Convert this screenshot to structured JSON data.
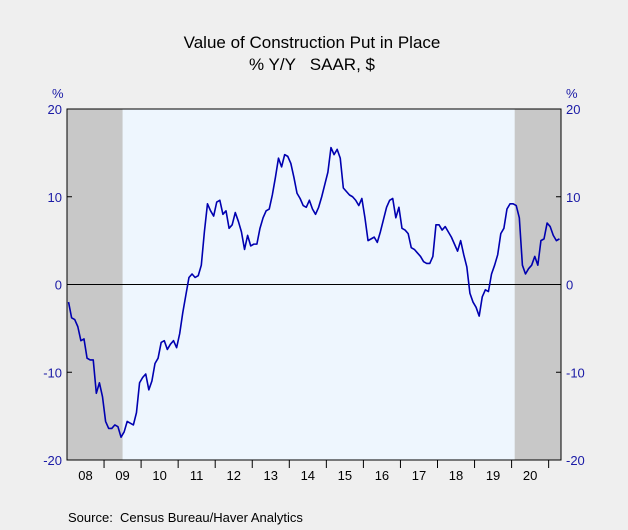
{
  "chart_data": {
    "type": "line",
    "title": "Value of Construction Put in Place",
    "subtitle": "% Y/Y   SAAR, $",
    "y_unit_left": "%",
    "y_unit_right": "%",
    "ylim": [
      -20,
      20
    ],
    "yticks": [
      -20,
      -10,
      0,
      10,
      20
    ],
    "ytick_labels": [
      "-20",
      "-10",
      "0",
      "10",
      "20"
    ],
    "x_range": [
      "2008-01",
      "2021-04"
    ],
    "xtick_labels": [
      "08",
      "09",
      "10",
      "11",
      "12",
      "13",
      "14",
      "15",
      "16",
      "17",
      "18",
      "19",
      "20"
    ],
    "recession_shading": [
      {
        "start": "2008-01",
        "end": "2009-06"
      },
      {
        "start": "2020-02",
        "end": "2021-04"
      }
    ],
    "source": "Source:  Census Bureau/Haver Analytics",
    "colors": {
      "line": "#0000b0",
      "axis_text": "#1a1aa6",
      "recession": "#c8c8c8",
      "plot_bg": "#eef6fe",
      "page_bg": "#efefef"
    },
    "series": [
      {
        "x": [
          "2008-01",
          "2008-02",
          "2008-03",
          "2008-04",
          "2008-05",
          "2008-06",
          "2008-07",
          "2008-08",
          "2008-09",
          "2008-10",
          "2008-11",
          "2008-12",
          "2009-01",
          "2009-02",
          "2009-03",
          "2009-04",
          "2009-05",
          "2009-06",
          "2009-07",
          "2009-08",
          "2009-09",
          "2009-10",
          "2009-11",
          "2009-12",
          "2010-01",
          "2010-02",
          "2010-03",
          "2010-04",
          "2010-05",
          "2010-06",
          "2010-07",
          "2010-08",
          "2010-09",
          "2010-10",
          "2010-11",
          "2010-12",
          "2011-01",
          "2011-02",
          "2011-03",
          "2011-04",
          "2011-05",
          "2011-06",
          "2011-07",
          "2011-08",
          "2011-09",
          "2011-10",
          "2011-11",
          "2011-12",
          "2012-01",
          "2012-02",
          "2012-03",
          "2012-04",
          "2012-05",
          "2012-06",
          "2012-07",
          "2012-08",
          "2012-09",
          "2012-10",
          "2012-11",
          "2012-12",
          "2013-01",
          "2013-02",
          "2013-03",
          "2013-04",
          "2013-05",
          "2013-06",
          "2013-07",
          "2013-08",
          "2013-09",
          "2013-10",
          "2013-11",
          "2013-12",
          "2014-01",
          "2014-02",
          "2014-03",
          "2014-04",
          "2014-05",
          "2014-06",
          "2014-07",
          "2014-08",
          "2014-09",
          "2014-10",
          "2014-11",
          "2014-12",
          "2015-01",
          "2015-02",
          "2015-03",
          "2015-04",
          "2015-05",
          "2015-06",
          "2015-07",
          "2015-08",
          "2015-09",
          "2015-10",
          "2015-11",
          "2015-12",
          "2016-01",
          "2016-02",
          "2016-03",
          "2016-04",
          "2016-05",
          "2016-06",
          "2016-07",
          "2016-08",
          "2016-09",
          "2016-10",
          "2016-11",
          "2016-12",
          "2017-01",
          "2017-02",
          "2017-03",
          "2017-04",
          "2017-05",
          "2017-06",
          "2017-07",
          "2017-08",
          "2017-09",
          "2017-10",
          "2017-11",
          "2017-12",
          "2018-01",
          "2018-02",
          "2018-03",
          "2018-04",
          "2018-05",
          "2018-06",
          "2018-07",
          "2018-08",
          "2018-09",
          "2018-10",
          "2018-11",
          "2018-12",
          "2019-01",
          "2019-02",
          "2019-03",
          "2019-04",
          "2019-05",
          "2019-06",
          "2019-07",
          "2019-08",
          "2019-09",
          "2019-10",
          "2019-11",
          "2019-12",
          "2020-01",
          "2020-02",
          "2020-03",
          "2020-04",
          "2020-05",
          "2020-06",
          "2020-07",
          "2020-08",
          "2020-09",
          "2020-10",
          "2020-11",
          "2020-12",
          "2021-01",
          "2021-02",
          "2021-03",
          "2021-04"
        ],
        "values": [
          -2.0,
          -3.8,
          -4.0,
          -4.8,
          -6.4,
          -6.2,
          -8.4,
          -8.6,
          -8.6,
          -12.4,
          -11.2,
          -12.8,
          -15.6,
          -16.4,
          -16.4,
          -16.0,
          -16.2,
          -17.4,
          -16.8,
          -15.6,
          -15.8,
          -16.0,
          -14.6,
          -11.2,
          -10.6,
          -10.2,
          -12.0,
          -11.0,
          -9.0,
          -8.4,
          -6.6,
          -6.4,
          -7.4,
          -6.8,
          -6.4,
          -7.2,
          -5.6,
          -3.2,
          -1.2,
          0.8,
          1.2,
          0.8,
          1.0,
          2.2,
          6.0,
          9.2,
          8.4,
          7.8,
          9.4,
          9.6,
          8.0,
          8.4,
          6.4,
          6.8,
          8.2,
          7.2,
          6.0,
          4.0,
          5.6,
          4.4,
          4.6,
          4.6,
          6.4,
          7.6,
          8.4,
          8.6,
          10.2,
          12.2,
          14.4,
          13.4,
          14.8,
          14.6,
          13.8,
          12.2,
          10.4,
          9.8,
          9.0,
          8.8,
          9.6,
          8.6,
          8.0,
          8.8,
          10.0,
          11.4,
          12.8,
          15.6,
          14.8,
          15.4,
          14.4,
          11.0,
          10.6,
          10.2,
          10.0,
          9.6,
          9.0,
          9.8,
          7.6,
          5.0,
          5.2,
          5.4,
          4.8,
          6.0,
          7.4,
          8.8,
          9.6,
          9.8,
          7.6,
          8.8,
          6.4,
          6.2,
          5.8,
          4.2,
          4.0,
          3.6,
          3.2,
          2.6,
          2.4,
          2.4,
          3.2,
          6.8,
          6.8,
          6.2,
          6.6,
          6.0,
          5.4,
          4.6,
          3.8,
          5.0,
          3.4,
          2.0,
          -1.0,
          -2.0,
          -2.6,
          -3.6,
          -1.4,
          -0.6,
          -0.8,
          1.2,
          2.2,
          3.4,
          5.8,
          6.4,
          8.6,
          9.2,
          9.2,
          9.0,
          7.6,
          2.2,
          1.2,
          1.8,
          2.2,
          3.2,
          2.2,
          5.0,
          5.2,
          7.0,
          6.6,
          5.6,
          5.0,
          5.2
        ]
      }
    ]
  }
}
